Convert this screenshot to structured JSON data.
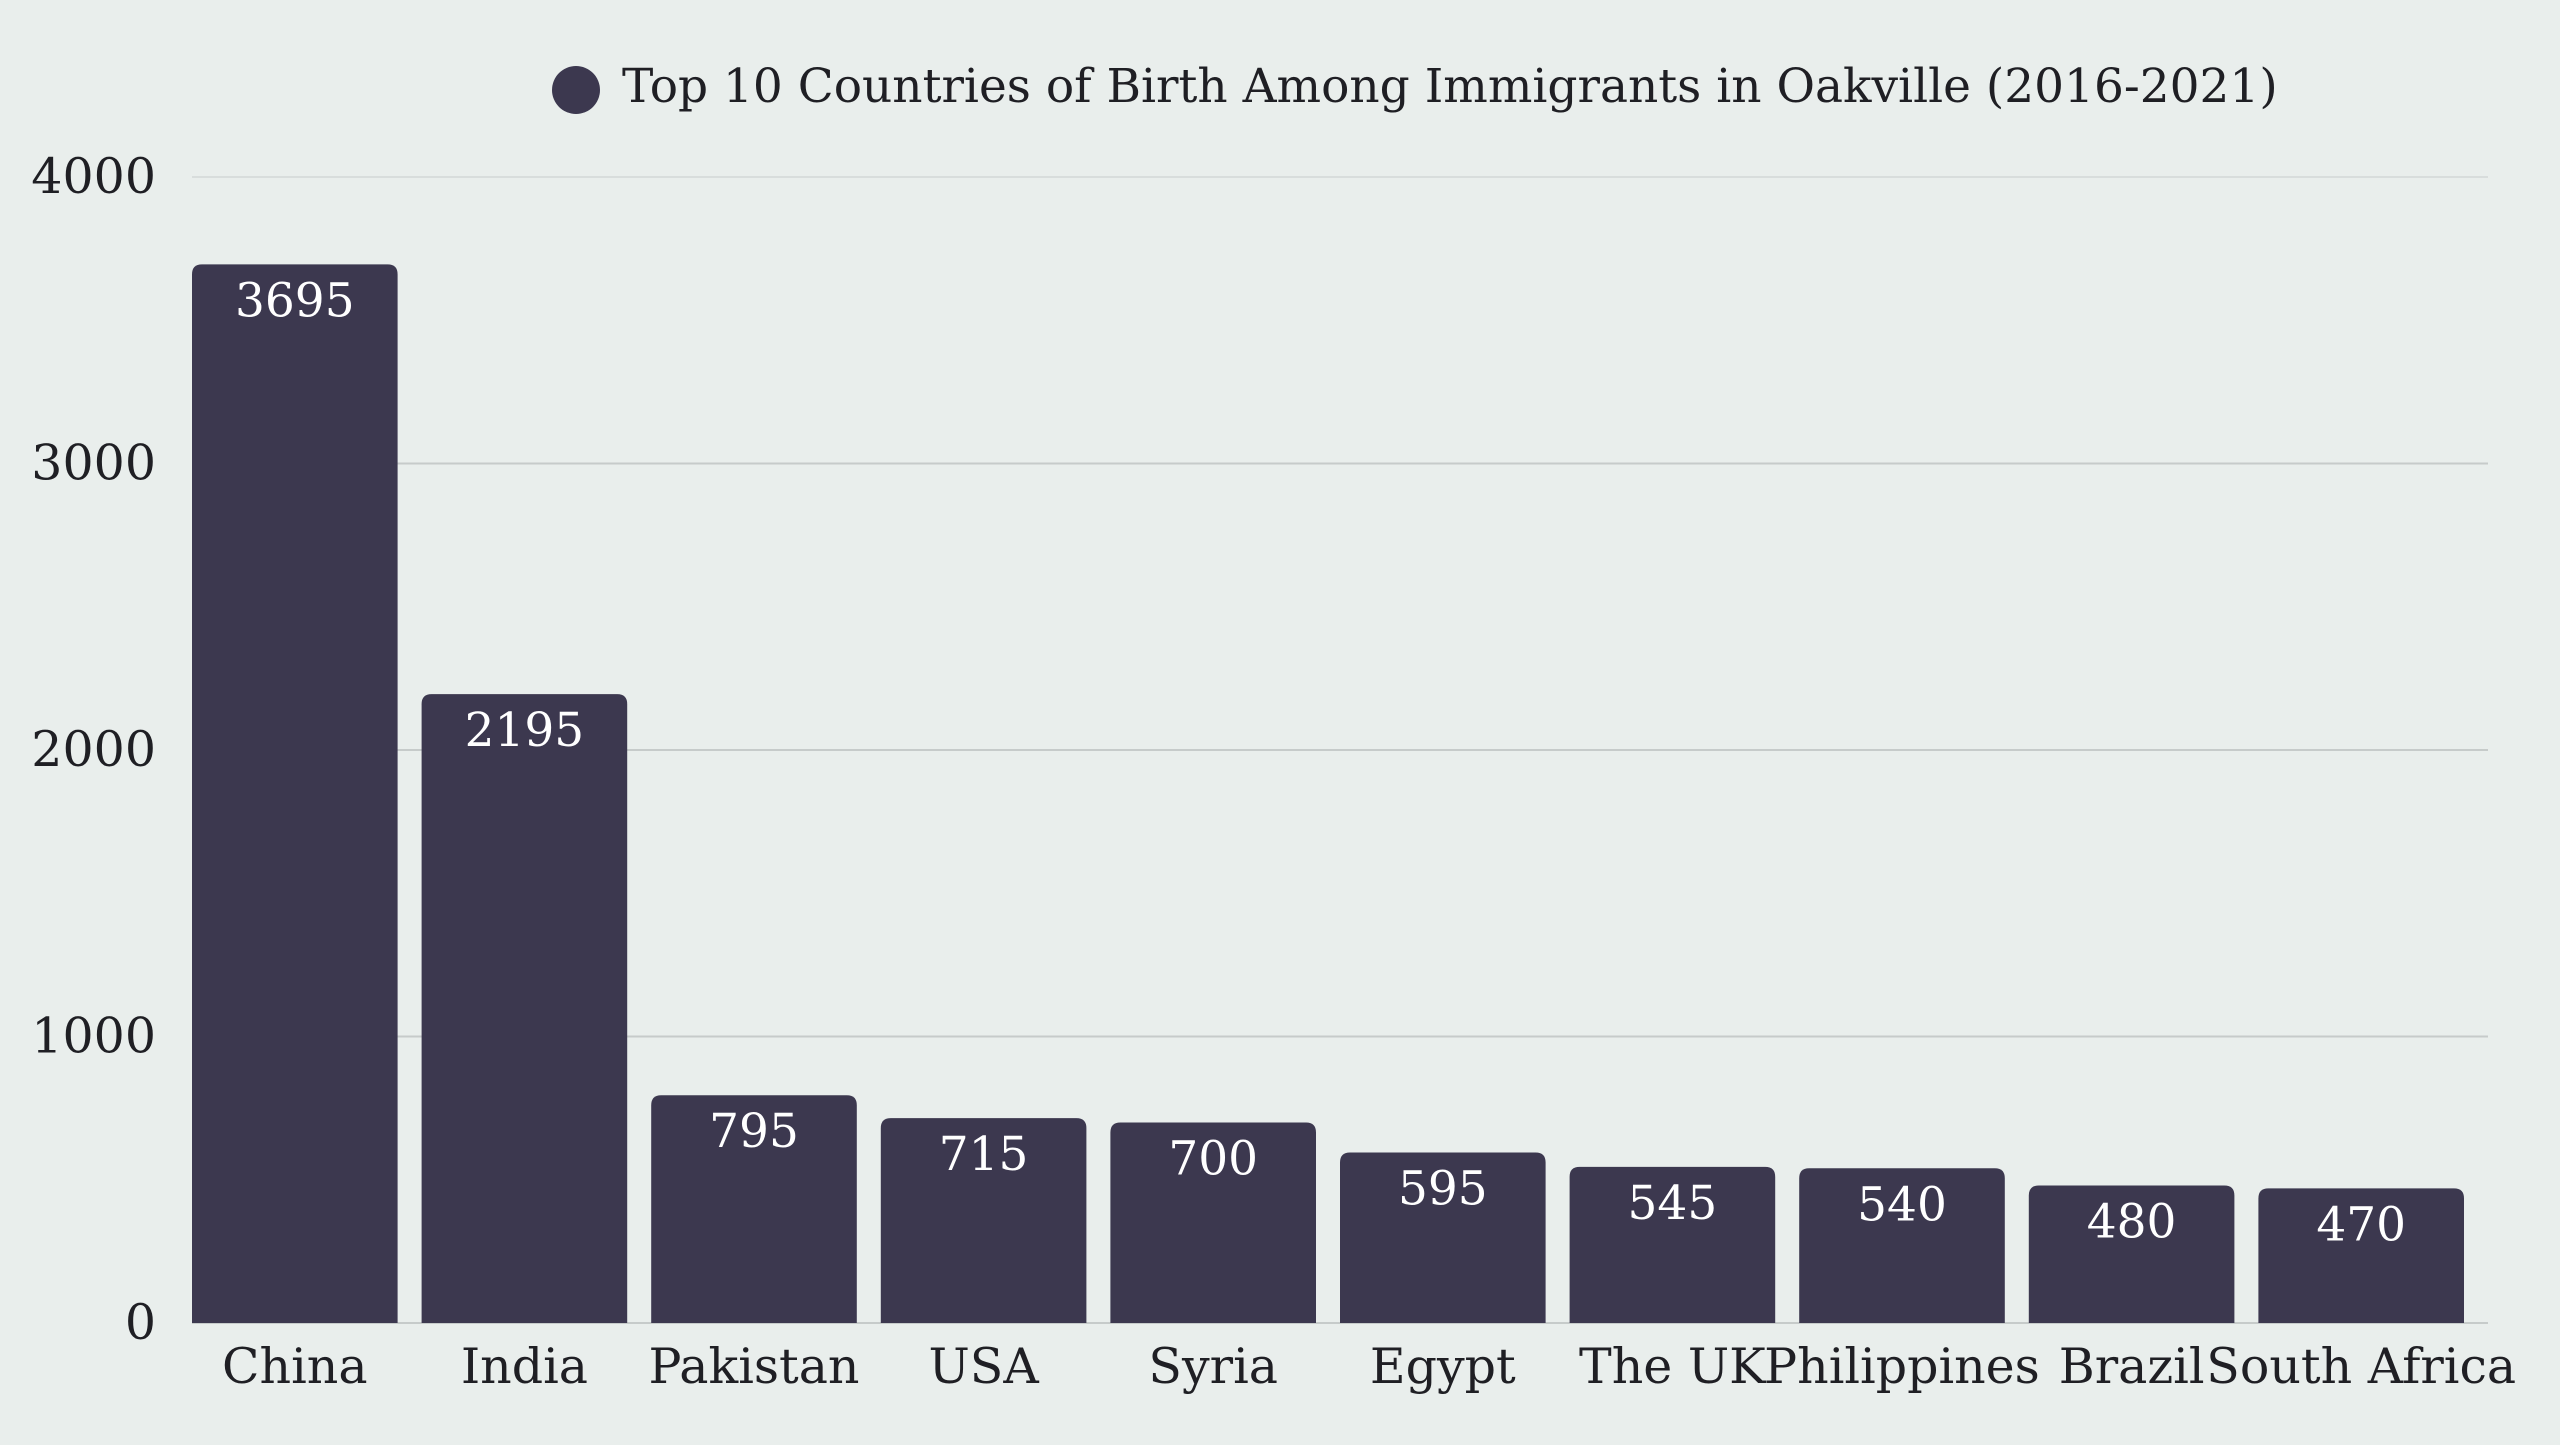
{
  "chart_data": {
    "type": "bar",
    "legend": {
      "label": "Top 10 Countries of Birth Among Immigrants in Oakville (2016-2021)",
      "position": "top"
    },
    "title": "",
    "xlabel": "",
    "ylabel": "",
    "categories": [
      "China",
      "India",
      "Pakistan",
      "USA",
      "Syria",
      "Egypt",
      "The UK",
      "Philippines",
      "Brazil",
      "South Africa"
    ],
    "values": [
      3695,
      2195,
      795,
      715,
      700,
      595,
      545,
      540,
      480,
      470
    ],
    "ylim": [
      0,
      4000
    ],
    "yticks": [
      0,
      1000,
      2000,
      3000,
      4000
    ],
    "grid": true,
    "data_labels": true,
    "bar_color": "#3c384f"
  }
}
